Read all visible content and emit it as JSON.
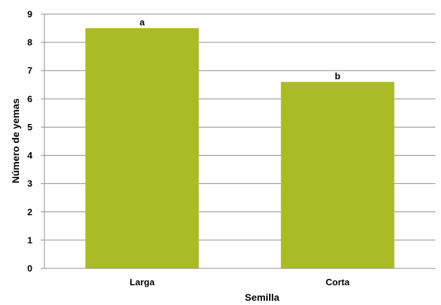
{
  "chart_data": {
    "type": "bar",
    "categories": [
      "Larga",
      "Corta"
    ],
    "values": [
      8.5,
      6.6
    ],
    "data_labels": [
      "a",
      "b"
    ],
    "xlabel": "Semilla",
    "ylabel": "Número de yemas",
    "ylim": [
      0,
      9
    ],
    "yticks": [
      "0",
      "1",
      "2",
      "3",
      "4",
      "5",
      "6",
      "7",
      "8",
      "9"
    ],
    "grid": true,
    "bar_color": "#abbb27"
  }
}
